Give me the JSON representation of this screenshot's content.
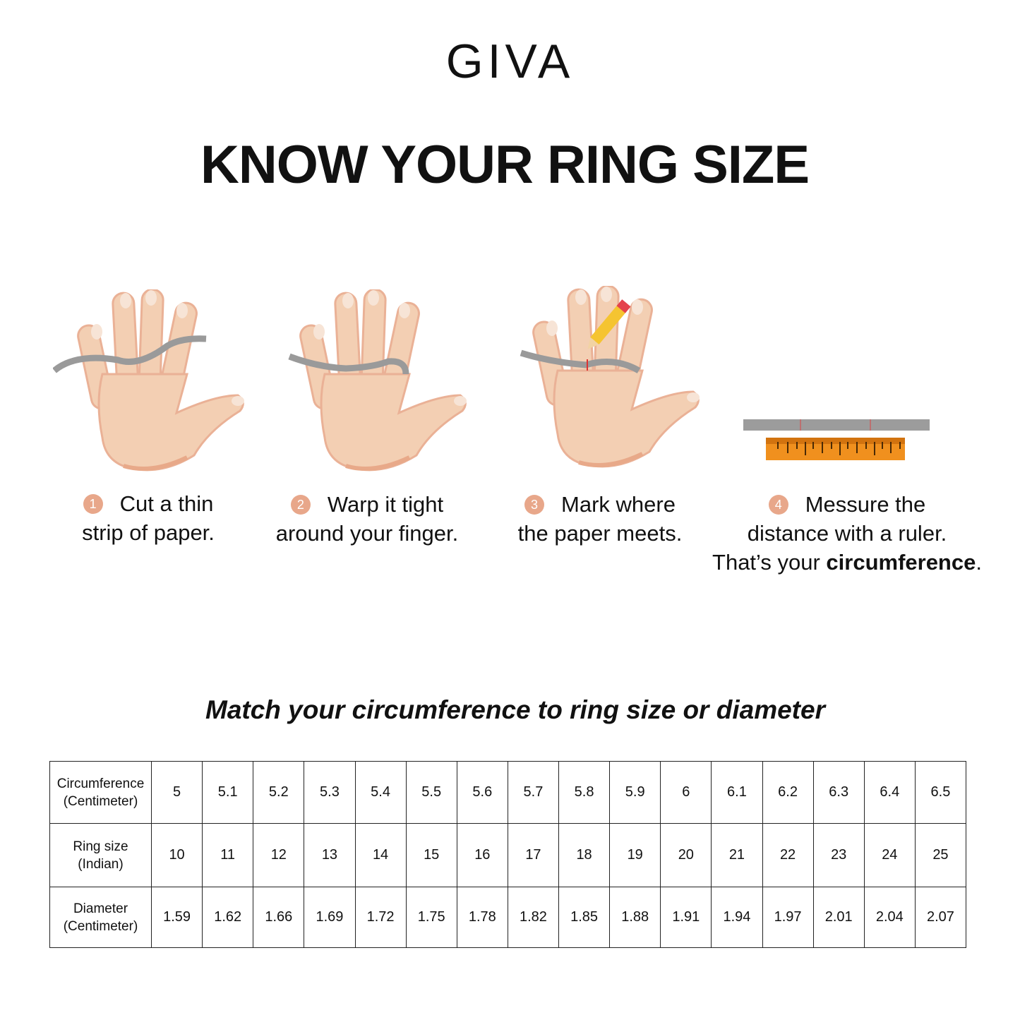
{
  "brand": "GIVA",
  "title": "KNOW YOUR RING SIZE",
  "steps": [
    {
      "num": "1",
      "line1": "Cut a thin",
      "line2": "strip of paper."
    },
    {
      "num": "2",
      "line1": "Warp it tight",
      "line2": "around your finger."
    },
    {
      "num": "3",
      "line1": "Mark where",
      "line2": "the paper meets."
    },
    {
      "num": "4",
      "line1": "Messure the",
      "line2": "distance with a ruler.",
      "line3_pre": "That’s your ",
      "line3_bold": "circumference",
      "line3_post": "."
    }
  ],
  "subtitle": "Match your circumference to ring size or diameter",
  "table": {
    "rows": [
      {
        "h1": "Circumference",
        "h2": "(Centimeter)",
        "values": [
          "5",
          "5.1",
          "5.2",
          "5.3",
          "5.4",
          "5.5",
          "5.6",
          "5.7",
          "5.8",
          "5.9",
          "6",
          "6.1",
          "6.2",
          "6.3",
          "6.4",
          "6.5"
        ]
      },
      {
        "h1": "Ring size",
        "h2": "(Indian)",
        "values": [
          "10",
          "11",
          "12",
          "13",
          "14",
          "15",
          "16",
          "17",
          "18",
          "19",
          "20",
          "21",
          "22",
          "23",
          "24",
          "25"
        ]
      },
      {
        "h1": "Diameter",
        "h2": "(Centimeter)",
        "values": [
          "1.59",
          "1.62",
          "1.66",
          "1.69",
          "1.72",
          "1.75",
          "1.78",
          "1.82",
          "1.85",
          "1.88",
          "1.91",
          "1.94",
          "1.97",
          "2.01",
          "2.04",
          "2.07"
        ]
      }
    ]
  },
  "colors": {
    "skin": "#f3cfb3",
    "skin_shade": "#e8a989",
    "strip": "#9a9a9a",
    "ruler": "#f0901e",
    "badge": "#e8a78a"
  }
}
